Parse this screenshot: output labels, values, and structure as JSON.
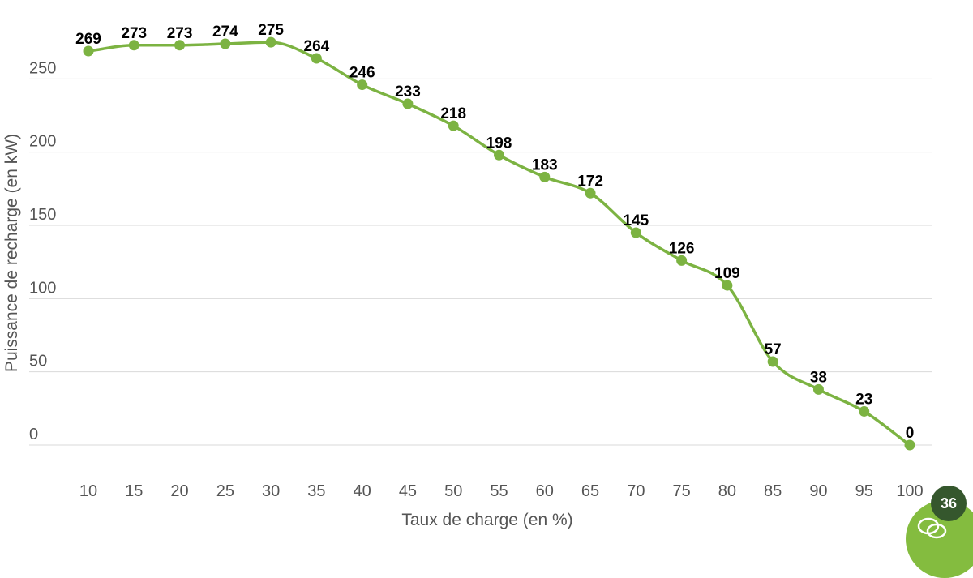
{
  "chart_data": {
    "type": "line",
    "x": [
      10,
      15,
      20,
      25,
      30,
      35,
      40,
      45,
      50,
      55,
      60,
      65,
      70,
      75,
      80,
      85,
      90,
      95,
      100
    ],
    "series": [
      {
        "values": [
          269,
          273,
          273,
          274,
          275,
          264,
          246,
          233,
          218,
          198,
          183,
          172,
          145,
          126,
          109,
          57,
          38,
          23,
          0
        ]
      }
    ],
    "data_labels": [
      "269",
      "273",
      "273",
      "274",
      "275",
      "264",
      "246",
      "233",
      "218",
      "198",
      "183",
      "172",
      "145",
      "126",
      "109",
      "57",
      "38",
      "23",
      "0"
    ],
    "xlabel": "Taux de charge (en %)",
    "ylabel": "Puissance de recharge (en kW)",
    "x_ticks": [
      "10",
      "15",
      "20",
      "25",
      "30",
      "35",
      "40",
      "45",
      "50",
      "55",
      "60",
      "65",
      "70",
      "75",
      "80",
      "85",
      "90",
      "95",
      "100"
    ],
    "y_ticks": [
      "0",
      "50",
      "100",
      "150",
      "200",
      "250"
    ],
    "y_tick_values": [
      0,
      50,
      100,
      150,
      200,
      250
    ],
    "ylim": [
      0,
      280
    ],
    "grid": "horizontal",
    "legend": "none",
    "line_color": "#7cb342",
    "marker_color": "#7cb342"
  },
  "widgets": {
    "notification_count": "36",
    "badge_color": "#35572d",
    "button_color": "#84bc3f",
    "button_icon": "chat-icon"
  }
}
